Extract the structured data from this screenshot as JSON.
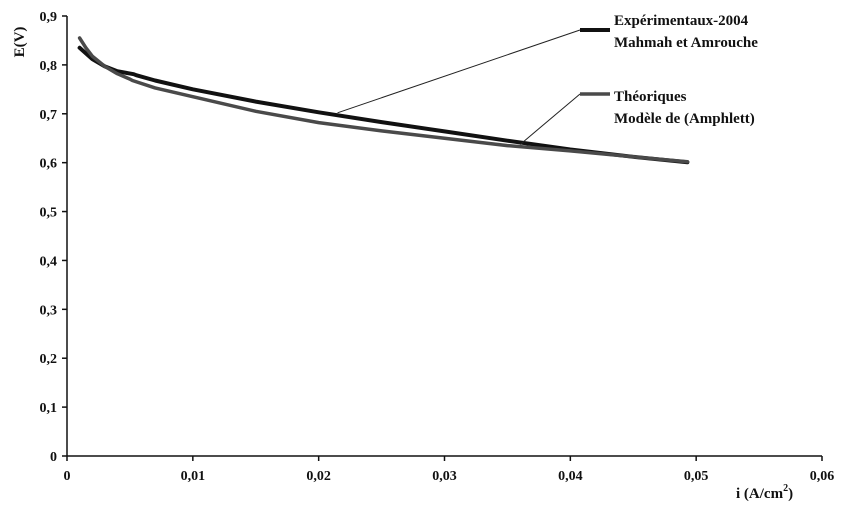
{
  "chart_data": {
    "type": "line",
    "title": "",
    "xlabel": "i (A/cm",
    "xlabel_sup": "2",
    "xlabel_close": ")",
    "ylabel": "E(V)",
    "xlim": [
      0,
      0.06
    ],
    "ylim": [
      0,
      0.9
    ],
    "x_ticks": [
      "0",
      "0,01",
      "0,02",
      "0,03",
      "0,04",
      "0,05",
      "0,06"
    ],
    "x_tick_values": [
      0,
      0.01,
      0.02,
      0.03,
      0.04,
      0.05,
      0.06
    ],
    "y_ticks": [
      "0",
      "0,1",
      "0,2",
      "0,3",
      "0,4",
      "0,5",
      "0,6",
      "0,7",
      "0,8",
      "0,9"
    ],
    "y_tick_values": [
      0,
      0.1,
      0.2,
      0.3,
      0.4,
      0.5,
      0.6,
      0.7,
      0.8,
      0.9
    ],
    "grid": false,
    "legend_position": "top-right",
    "series": [
      {
        "name_line1": "Expérimentaux-2004",
        "name_line2": "Mahmah et Amrouche",
        "color": "#111111",
        "x": [
          0.001,
          0.002,
          0.003,
          0.004,
          0.0053,
          0.0055,
          0.007,
          0.01,
          0.015,
          0.02,
          0.025,
          0.03,
          0.035,
          0.04,
          0.045,
          0.0493
        ],
        "y": [
          0.835,
          0.812,
          0.797,
          0.787,
          0.781,
          0.779,
          0.768,
          0.75,
          0.725,
          0.703,
          0.683,
          0.664,
          0.645,
          0.627,
          0.612,
          0.601
        ]
      },
      {
        "name_line1": "Théoriques",
        "name_line2": "Modèle de (Amphlett)",
        "color": "#4a4a4a",
        "x": [
          0.001,
          0.0015,
          0.002,
          0.003,
          0.004,
          0.005,
          0.0052,
          0.007,
          0.01,
          0.015,
          0.02,
          0.025,
          0.03,
          0.035,
          0.04,
          0.045,
          0.0493
        ],
        "y": [
          0.855,
          0.835,
          0.818,
          0.797,
          0.782,
          0.771,
          0.768,
          0.753,
          0.735,
          0.705,
          0.682,
          0.665,
          0.65,
          0.635,
          0.624,
          0.612,
          0.602
        ]
      }
    ],
    "leader_lines": [
      {
        "series": 0,
        "anchor_x": 0.0215,
        "anchor_y": 0.702
      },
      {
        "series": 1,
        "anchor_x": 0.036,
        "anchor_y": 0.637
      }
    ]
  }
}
